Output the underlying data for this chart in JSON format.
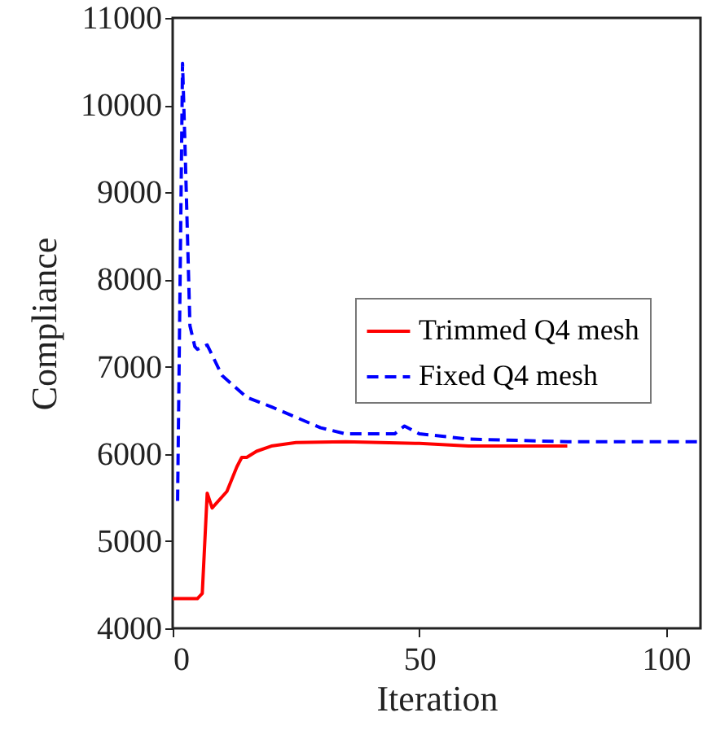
{
  "chart_data": {
    "type": "line",
    "xlabel": "Iteration",
    "ylabel": "Compliance",
    "xlim": [
      0,
      107
    ],
    "ylim": [
      4000,
      11000
    ],
    "xticks": [
      0,
      50,
      100
    ],
    "yticks": [
      4000,
      5000,
      6000,
      7000,
      8000,
      9000,
      10000,
      11000
    ],
    "grid": false,
    "legend": "right",
    "series": [
      {
        "name": "Trimmed Q4 mesh",
        "color": "#ff0000",
        "line_style": "solid",
        "x": [
          0,
          5,
          6,
          7,
          8,
          11,
          13,
          14,
          15,
          17,
          20,
          25,
          35,
          50,
          60,
          80
        ],
        "values": [
          4340,
          4340,
          4400,
          5550,
          5380,
          5570,
          5850,
          5960,
          5960,
          6030,
          6090,
          6130,
          6140,
          6120,
          6090,
          6090
        ]
      },
      {
        "name": "Fixed Q4 mesh",
        "color": "#0000ff",
        "line_style": "dashed",
        "x": [
          1,
          2,
          2.5,
          3.5,
          4.5,
          5,
          7,
          10,
          15,
          20,
          25,
          30,
          35,
          45,
          47,
          50,
          60,
          80,
          107
        ],
        "values": [
          5460,
          10480,
          9530,
          7470,
          7230,
          7200,
          7250,
          6900,
          6650,
          6540,
          6420,
          6300,
          6230,
          6230,
          6320,
          6230,
          6170,
          6140,
          6140
        ]
      }
    ]
  }
}
